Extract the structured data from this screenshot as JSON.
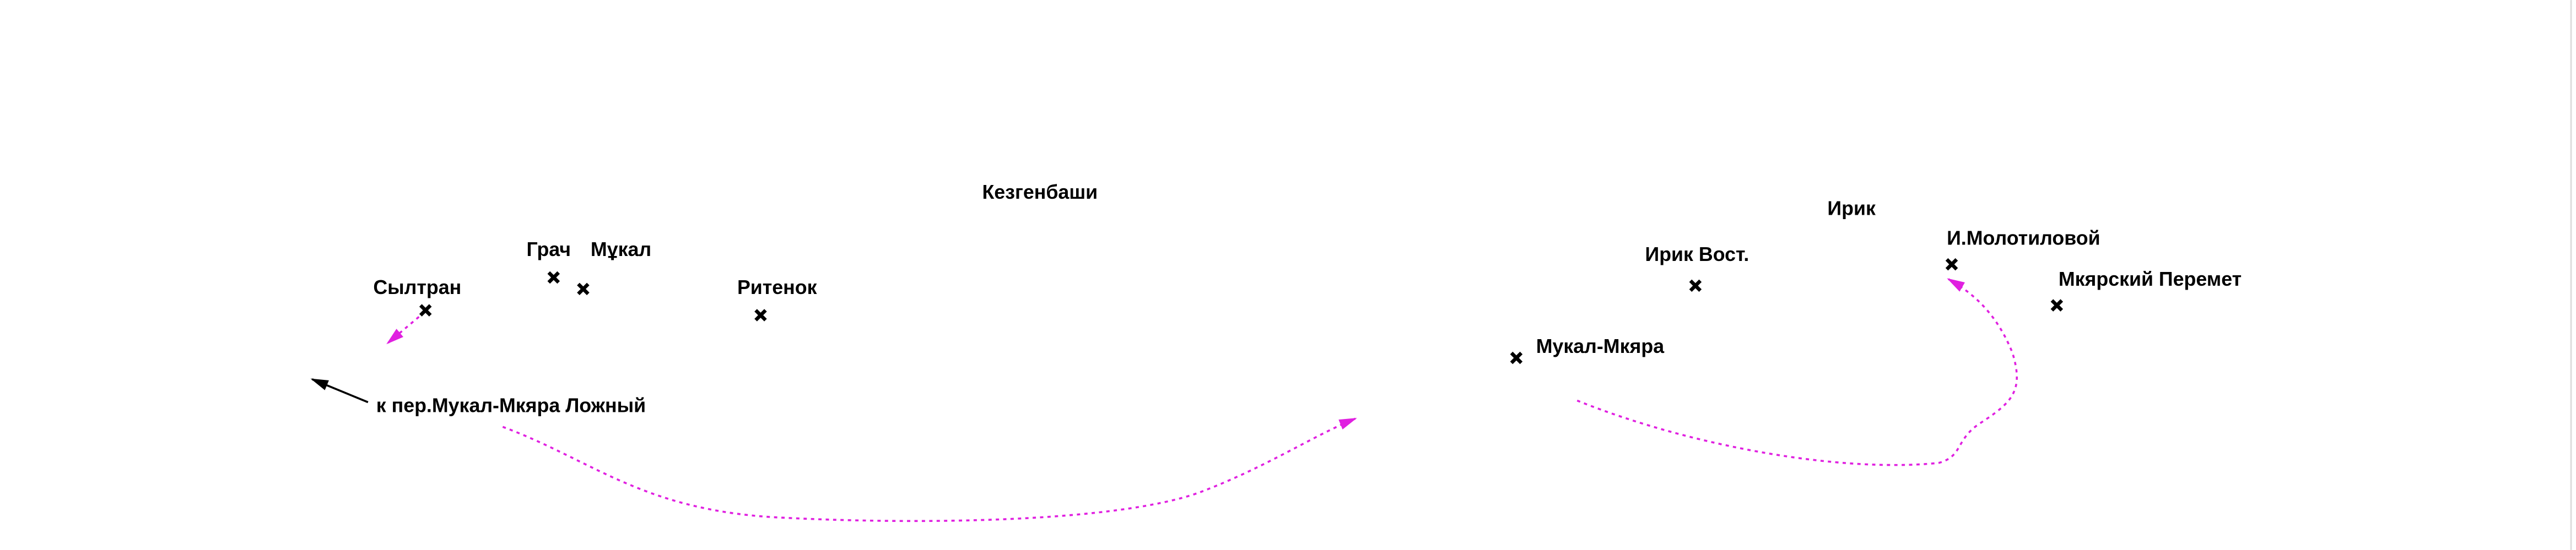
{
  "map": {
    "places": [
      {
        "name": "Кезгенбаши"
      },
      {
        "name": "Грач"
      },
      {
        "name": "Мұкал"
      },
      {
        "name": "Сылтран"
      },
      {
        "name": "Ритенок"
      },
      {
        "name": "Ирик"
      },
      {
        "name": "Ирик Вост."
      },
      {
        "name": "Мукал-Мкяра"
      },
      {
        "name": "И.Молотиловой"
      },
      {
        "name": "Мкярский Перемет"
      }
    ],
    "direction_note": "к пер.Мукал-Мкяра Ложный"
  }
}
